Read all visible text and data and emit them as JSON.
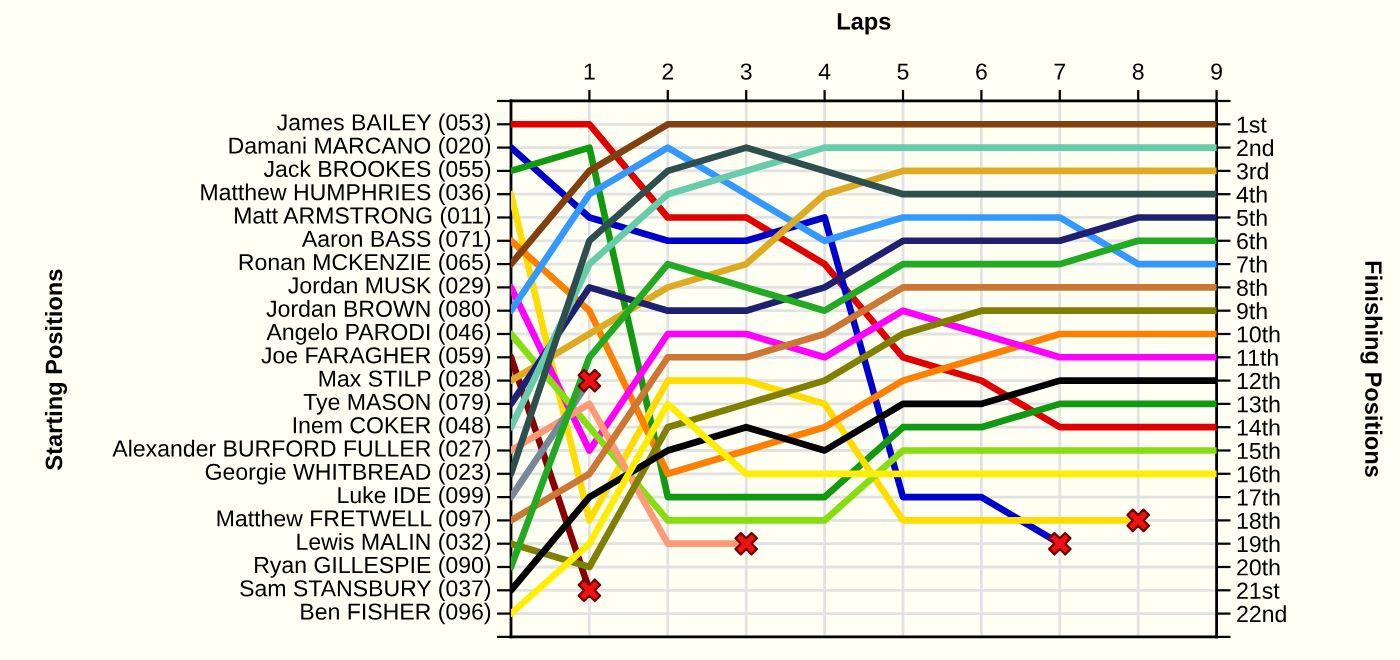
{
  "chart_data": {
    "type": "line",
    "xlabel": "Laps",
    "ylabel": "Finishing Positions",
    "x": [
      0,
      1,
      2,
      3,
      4,
      5,
      6,
      7,
      8,
      9
    ],
    "xlim": [
      0,
      9
    ],
    "xticks": [
      1,
      2,
      3,
      4,
      5,
      6,
      7,
      8,
      9
    ],
    "ylim": [
      23,
      0
    ],
    "yticks": [
      {
        "value": 0,
        "label": null
      },
      {
        "value": 1,
        "label": "1st"
      },
      {
        "value": 2,
        "label": "2nd"
      },
      {
        "value": 3,
        "label": "3rd"
      },
      {
        "value": 4,
        "label": "4th"
      },
      {
        "value": 5,
        "label": "5th"
      },
      {
        "value": 6,
        "label": "6th"
      },
      {
        "value": 7,
        "label": "7th"
      },
      {
        "value": 8,
        "label": "8th"
      },
      {
        "value": 9,
        "label": "9th"
      },
      {
        "value": 10,
        "label": "10th"
      },
      {
        "value": 11,
        "label": "11th"
      },
      {
        "value": 12,
        "label": "12th"
      },
      {
        "value": 13,
        "label": "13th"
      },
      {
        "value": 14,
        "label": "14th"
      },
      {
        "value": 15,
        "label": "15th"
      },
      {
        "value": 16,
        "label": "16th"
      },
      {
        "value": 17,
        "label": "17th"
      },
      {
        "value": 18,
        "label": "18th"
      },
      {
        "value": 19,
        "label": "19th"
      },
      {
        "value": 20,
        "label": "20th"
      },
      {
        "value": 21,
        "label": "21st"
      },
      {
        "value": 22,
        "label": "22nd"
      },
      {
        "value": 23,
        "label": null
      }
    ],
    "grid": true,
    "annotations": [
      "Starting Positions",
      "James BAILEY (053)",
      "Damani MARCANO (020)",
      "Jack BROOKES (055)",
      "Matthew HUMPHRIES (036)",
      "Matt ARMSTRONG (011)",
      "Aaron BASS (071)",
      "Ronan MCKENZIE (065)",
      "Jordan MUSK (029)",
      "Jordan BROWN (080)",
      "Angelo PARODI (046)",
      "Joe FARAGHER (059)",
      "Max STILP (028)",
      "Tye MASON (079)",
      "Inem COKER (048)",
      "Alexander BURFORD FULLER (027)",
      "Georgie WHITBREAD (023)",
      "Luke IDE (099)",
      "Matthew FRETWELL (097)",
      "Lewis MALIN (032)",
      "Ryan GILLESPIE (090)",
      "Sam STANSBURY (037)",
      "Ben FISHER (096)"
    ],
    "series": [
      {
        "color": "#e00000",
        "values": [
          1,
          1,
          5,
          5,
          7,
          11,
          12,
          14,
          14,
          14
        ]
      },
      {
        "color": "#0000cc",
        "values": [
          2,
          5,
          6,
          6,
          5,
          17,
          17,
          19,
          null,
          null
        ]
      },
      {
        "color": "#119911",
        "values": [
          3,
          2,
          17,
          17,
          17,
          14,
          14,
          13,
          13,
          13
        ]
      },
      {
        "color": "#ffdd00",
        "values": [
          4,
          18,
          12,
          12,
          13,
          18,
          18,
          18,
          18,
          null
        ]
      },
      {
        "color": "#ff8000",
        "values": [
          6,
          9,
          16,
          15,
          14,
          12,
          11,
          10,
          10,
          10
        ]
      },
      {
        "color": "#804010",
        "values": [
          7,
          3,
          1,
          1,
          1,
          1,
          1,
          1,
          1,
          1
        ]
      },
      {
        "color": "#ff00ff",
        "values": [
          8,
          15,
          10,
          10,
          11,
          9,
          10,
          11,
          11,
          11
        ]
      },
      {
        "color": "#3399ff",
        "values": [
          9,
          4,
          2,
          4,
          6,
          5,
          5,
          5,
          7,
          7
        ]
      },
      {
        "color": "#88dd11",
        "values": [
          10,
          14,
          18,
          18,
          18,
          15,
          15,
          15,
          15,
          15
        ]
      },
      {
        "color": "#880000",
        "values": [
          11,
          21,
          null,
          null,
          null,
          null,
          null,
          null,
          null,
          null
        ]
      },
      {
        "color": "#ddaa22",
        "values": [
          12,
          10,
          8,
          7,
          4,
          3,
          3,
          3,
          3,
          3
        ]
      },
      {
        "color": "#202070",
        "values": [
          13,
          8,
          9,
          9,
          8,
          6,
          6,
          6,
          5,
          5
        ]
      },
      {
        "color": "#66ccaa",
        "values": [
          14,
          7,
          4,
          3,
          2,
          2,
          2,
          2,
          2,
          2
        ]
      },
      {
        "color": "#ff9977",
        "values": [
          15,
          13,
          19,
          19,
          null,
          null,
          null,
          null,
          null,
          null
        ]
      },
      {
        "color": "#2f4f4f",
        "values": [
          16,
          6,
          3,
          2,
          3,
          4,
          4,
          4,
          4,
          4
        ]
      },
      {
        "color": "#778899",
        "values": [
          17,
          12,
          null,
          null,
          null,
          null,
          null,
          null,
          null,
          null
        ]
      },
      {
        "color": "#cc7733",
        "values": [
          18,
          16,
          11,
          11,
          10,
          8,
          8,
          8,
          8,
          8
        ]
      },
      {
        "color": "#808000",
        "values": [
          19,
          20,
          14,
          13,
          12,
          10,
          9,
          9,
          9,
          9
        ]
      },
      {
        "color": "#22aa22",
        "values": [
          20,
          11,
          7,
          8,
          9,
          7,
          7,
          7,
          6,
          6
        ]
      },
      {
        "color": "#000000",
        "values": [
          21,
          17,
          15,
          14,
          15,
          13,
          13,
          12,
          12,
          12
        ]
      },
      {
        "color": "#ffee00",
        "values": [
          22,
          19,
          13,
          16,
          16,
          16,
          16,
          16,
          16,
          16
        ]
      },
      {
        "type": "scatter",
        "marker": "cross",
        "color": "#ee1111",
        "x": [
          1,
          1,
          3,
          7,
          8
        ],
        "values": [
          12,
          21,
          19,
          19,
          18
        ]
      }
    ]
  }
}
